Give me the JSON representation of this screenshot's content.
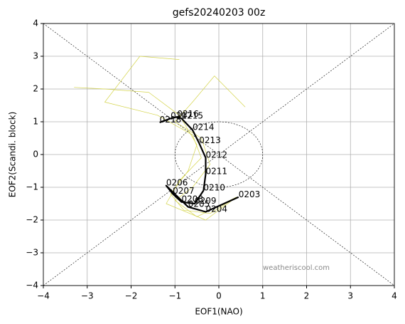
{
  "chart_data": {
    "type": "line",
    "title": "gefs20240203 00z",
    "x_label": "EOF1(NAO)",
    "y_label": "EOF2(Scandi. block)",
    "annotation": "weatheriscool.com",
    "xlim": [
      -4,
      4
    ],
    "ylim": [
      -4,
      4
    ],
    "xticks": [
      {
        "value": -4,
        "label": "−4"
      },
      {
        "value": -3,
        "label": "−3"
      },
      {
        "value": -2,
        "label": "−2"
      },
      {
        "value": -1,
        "label": "−1"
      },
      0,
      1,
      2,
      3,
      4
    ],
    "yticks": [
      {
        "value": -4,
        "label": "−4"
      },
      {
        "value": -3,
        "label": "−3"
      },
      {
        "value": -2,
        "label": "−2"
      },
      {
        "value": -1,
        "label": "−1"
      },
      0,
      1,
      2,
      3,
      4
    ],
    "grid": true,
    "diagonals": true,
    "circle_radius": 1,
    "series": [
      {
        "color": "#d4d44a",
        "x": [
          0.4,
          -0.2,
          -0.8,
          -1.1,
          -0.7,
          -0.5,
          -0.9,
          -1.6,
          -2.6,
          -3.3
        ],
        "values": [
          -1.3,
          -1.8,
          -1.7,
          -1.2,
          -0.5,
          0.3,
          1.2,
          1.9,
          2.0,
          2.05
        ]
      },
      {
        "color": "#d4d44a",
        "x": [
          0.4,
          -0.5,
          -1.0,
          -0.6,
          -0.2,
          -0.4,
          -1.0,
          -0.6,
          -0.1,
          0.6
        ],
        "values": [
          -1.3,
          -1.9,
          -1.4,
          -1.0,
          -0.3,
          0.5,
          1.0,
          1.6,
          2.4,
          1.45
        ]
      },
      {
        "color": "#d4d44a",
        "x": [
          0.4,
          -0.3,
          -1.2,
          -0.9,
          -0.4,
          -0.6,
          -1.4,
          -2.6,
          -1.8,
          -0.9
        ],
        "values": [
          -1.3,
          -2.0,
          -1.5,
          -0.8,
          -0.1,
          0.6,
          1.2,
          1.6,
          3.0,
          2.9
        ]
      },
      {
        "color": "#000000",
        "thick": true,
        "x": [
          0.45,
          -0.3,
          -0.7,
          -1.2,
          -1.05,
          -0.85,
          -0.55,
          -0.35,
          -0.3,
          -0.3,
          -0.45,
          -0.6,
          -0.85,
          -0.95,
          -1.1,
          -1.35
        ],
        "values": [
          -1.3,
          -1.75,
          -1.6,
          -0.95,
          -1.2,
          -1.45,
          -1.5,
          -1.1,
          -0.6,
          -0.1,
          0.35,
          0.75,
          1.1,
          1.15,
          1.1,
          0.98
        ],
        "point_labels": [
          "0203",
          "0204",
          "0205",
          "0206",
          "0207",
          "0208",
          "0209",
          "0210",
          "0211",
          "0212",
          "0213",
          "0214",
          "0215",
          "0216",
          "0217",
          "0218"
        ]
      }
    ]
  }
}
